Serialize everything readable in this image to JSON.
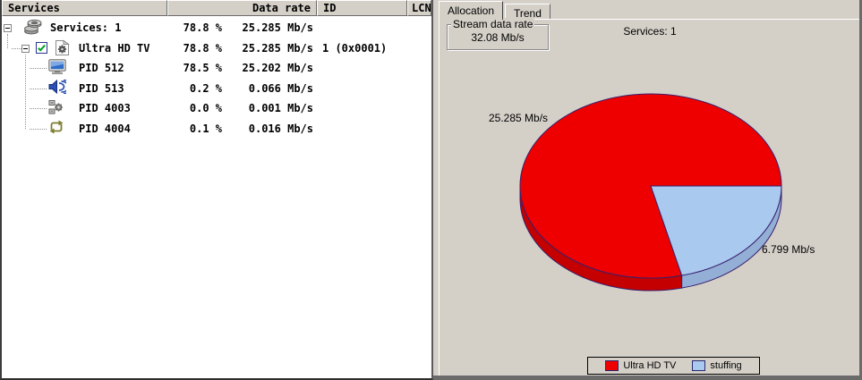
{
  "left_panel": {
    "columns": [
      "Services",
      "Data rate",
      "ID",
      "LCN"
    ],
    "rows": [
      {
        "label": "Services: 1",
        "percent": "78.8 %",
        "rate": "25.285 Mb/s",
        "id": "",
        "icon": "services-stack",
        "level": 0,
        "expander": true,
        "checkbox": false
      },
      {
        "label": "Ultra HD TV",
        "percent": "78.8 %",
        "rate": "25.285 Mb/s",
        "id": "1 (0x0001)",
        "icon": "service-gear-doc",
        "level": 1,
        "expander": true,
        "checkbox": true
      },
      {
        "label": "PID 512",
        "percent": "78.5 %",
        "rate": "25.202 Mb/s",
        "id": "",
        "icon": "video-monitor",
        "level": 2,
        "expander": false,
        "checkbox": false
      },
      {
        "label": "PID 513",
        "percent": "0.2 %",
        "rate": "0.066 Mb/s",
        "id": "",
        "icon": "audio-speaker",
        "level": 2,
        "expander": false,
        "checkbox": false
      },
      {
        "label": "PID 4003",
        "percent": "0.0 %",
        "rate": "0.001 Mb/s",
        "id": "",
        "icon": "data-gears",
        "level": 2,
        "expander": false,
        "checkbox": false
      },
      {
        "label": "PID 4004",
        "percent": "0.1 %",
        "rate": "0.016 Mb/s",
        "id": "",
        "icon": "loop-arrows",
        "level": 2,
        "expander": false,
        "checkbox": false
      }
    ]
  },
  "right_panel": {
    "tabs": [
      {
        "label": "Allocation",
        "active": true
      },
      {
        "label": "Trend",
        "active": false
      }
    ],
    "stream_box": {
      "title": "Stream data rate",
      "value": "32.08 Mb/s"
    },
    "chart_title": "Services: 1"
  },
  "chart_data": {
    "type": "pie",
    "style": "3d",
    "title": "Services: 1",
    "total_label": "32.08 Mb/s",
    "slices": [
      {
        "name": "Ultra HD TV",
        "value": 25.285,
        "label": "25.285 Mb/s",
        "percent": 78.8,
        "color": "#ee0000",
        "side_color": "#c40000"
      },
      {
        "name": "stuffing",
        "value": 6.799,
        "label": "6.799 Mb/s",
        "percent": 21.2,
        "color": "#aac9ee",
        "side_color": "#93afd6"
      }
    ],
    "legend_position": "bottom",
    "start_angle_deg": 0,
    "direction": "clockwise",
    "draw_order": [
      1,
      0
    ]
  },
  "ui_colors": {
    "window_gray": "#d4d0c8",
    "pie_outline": "#38206e",
    "check_green": "#00a01e",
    "list_background": "#ffffff"
  }
}
